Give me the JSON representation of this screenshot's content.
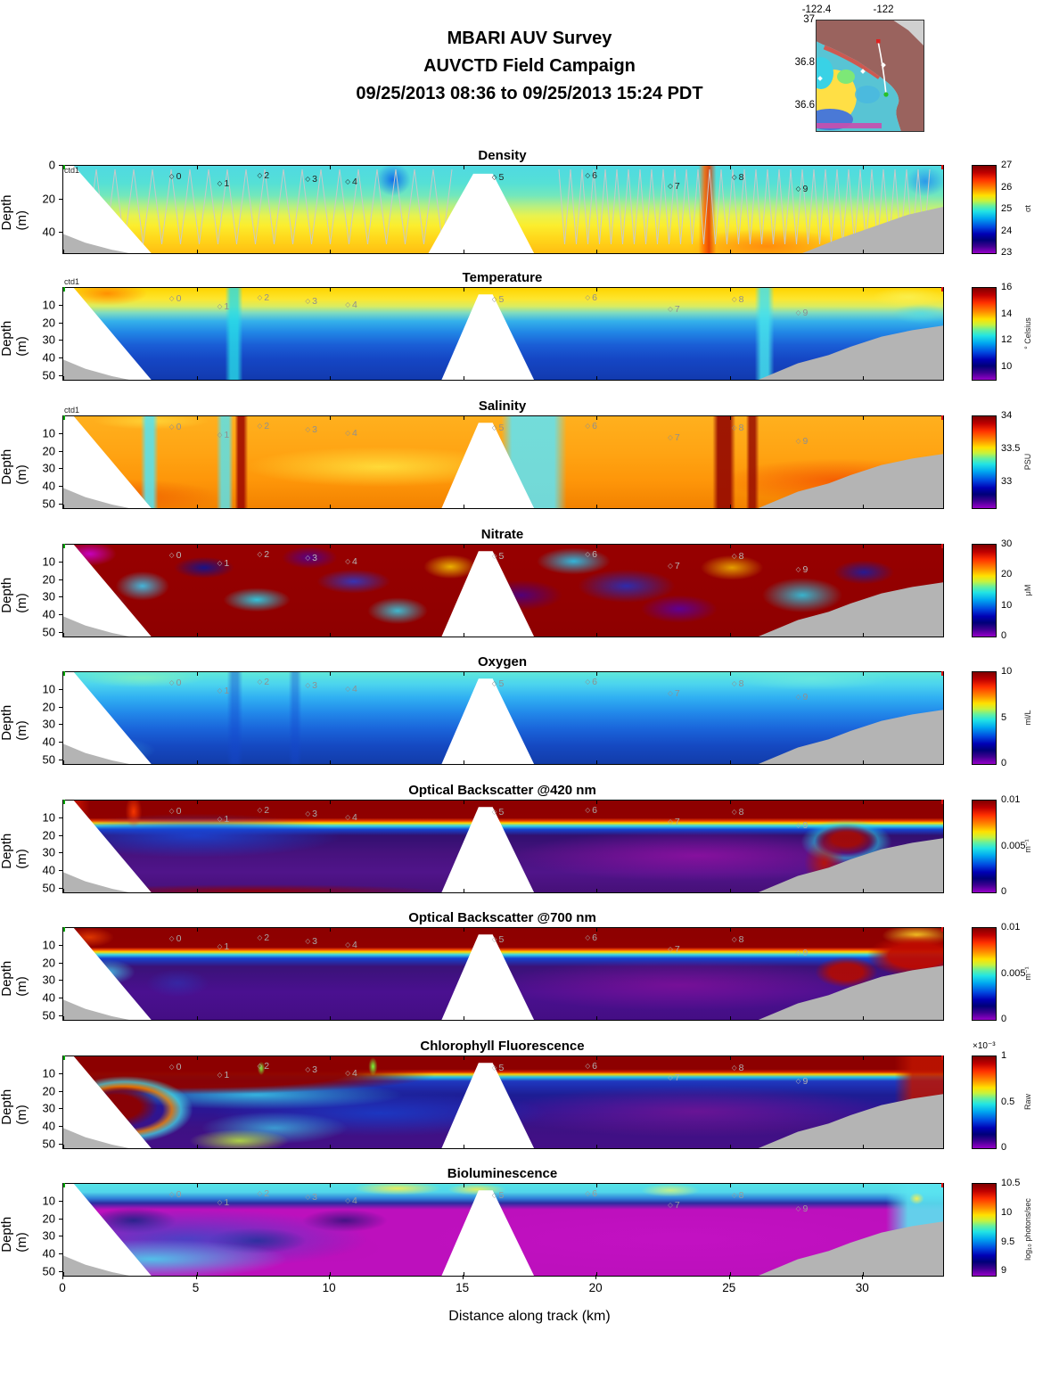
{
  "header": {
    "line1": "MBARI AUV Survey",
    "line2": "AUVCTD Field Campaign",
    "line3": "09/25/2013 08:36  to 09/25/2013 15:24 PDT"
  },
  "map_inset": {
    "lon_ticks": [
      "-122.4",
      "-122"
    ],
    "lat_ticks": [
      "37",
      "36.8",
      "36.6"
    ],
    "track_start_color": "#e02020",
    "track_end_color": "#27c227"
  },
  "axes": {
    "x_label": "Distance along track (km)",
    "x_ticks": [
      0,
      5,
      10,
      15,
      20,
      25,
      30
    ],
    "x_range_km": [
      0,
      33
    ],
    "depth_label": "Depth (m)",
    "depth_range_m": [
      0,
      52
    ]
  },
  "waypoints": {
    "labels": [
      "0",
      "1",
      "2",
      "3",
      "4",
      "5",
      "6",
      "7",
      "8",
      "9"
    ],
    "km": [
      4.2,
      6.0,
      7.5,
      9.3,
      10.8,
      16.3,
      19.8,
      22.9,
      25.3,
      27.7
    ]
  },
  "panels": [
    {
      "id": "density",
      "title": "Density",
      "ctd_label": "ctd1",
      "y_ticks": [
        0,
        20,
        40
      ],
      "colorbar": {
        "ticks": [
          "27",
          "26",
          "25",
          "24",
          "23"
        ],
        "positions": [
          0,
          0.25,
          0.5,
          0.75,
          1
        ],
        "unit": "σt"
      }
    },
    {
      "id": "temperature",
      "title": "Temperature",
      "ctd_label": "ctd1",
      "y_ticks": [
        10,
        20,
        30,
        40,
        50
      ],
      "colorbar": {
        "ticks": [
          "16",
          "14",
          "12",
          "10"
        ],
        "positions": [
          0,
          0.29,
          0.57,
          0.86
        ],
        "unit": "° Celsius"
      }
    },
    {
      "id": "salinity",
      "title": "Salinity",
      "ctd_label": "ctd1",
      "y_ticks": [
        10,
        20,
        30,
        40,
        50
      ],
      "colorbar": {
        "ticks": [
          "34",
          "33.5",
          "33"
        ],
        "positions": [
          0,
          0.36,
          0.72
        ],
        "unit": "PSU"
      }
    },
    {
      "id": "nitrate",
      "title": "Nitrate",
      "y_ticks": [
        10,
        20,
        30,
        40,
        50
      ],
      "colorbar": {
        "ticks": [
          "30",
          "20",
          "10",
          "0"
        ],
        "positions": [
          0,
          0.33,
          0.67,
          1
        ],
        "unit": "μM"
      }
    },
    {
      "id": "oxygen",
      "title": "Oxygen",
      "y_ticks": [
        10,
        20,
        30,
        40,
        50
      ],
      "colorbar": {
        "ticks": [
          "10",
          "5",
          "0"
        ],
        "positions": [
          0,
          0.5,
          1
        ],
        "unit": "ml/L"
      }
    },
    {
      "id": "obs420",
      "title": "Optical Backscatter @420 nm",
      "y_ticks": [
        10,
        20,
        30,
        40,
        50
      ],
      "colorbar": {
        "ticks": [
          "0.01",
          "0.005",
          "0"
        ],
        "positions": [
          0,
          0.5,
          1
        ],
        "unit": "m⁻¹"
      }
    },
    {
      "id": "obs700",
      "title": "Optical Backscatter @700 nm",
      "y_ticks": [
        10,
        20,
        30,
        40,
        50
      ],
      "colorbar": {
        "ticks": [
          "0.01",
          "0.005",
          "0"
        ],
        "positions": [
          0,
          0.5,
          1
        ],
        "unit": "m⁻¹"
      }
    },
    {
      "id": "chlorophyll",
      "title": "Chlorophyll Fluorescence",
      "y_ticks": [
        10,
        20,
        30,
        40,
        50
      ],
      "colorbar": {
        "ticks": [
          "1",
          "0.5",
          "0"
        ],
        "positions": [
          0,
          0.5,
          1
        ],
        "unit": "Raw",
        "multiplier": "×10⁻³"
      }
    },
    {
      "id": "bioluminescence",
      "title": "Bioluminescence",
      "y_ticks": [
        10,
        20,
        30,
        40,
        50
      ],
      "colorbar": {
        "ticks": [
          "10.5",
          "10",
          "9.5",
          "9"
        ],
        "positions": [
          0,
          0.32,
          0.64,
          0.95
        ],
        "unit": "log₁₀ photons/sec"
      }
    }
  ],
  "chart_data": [
    {
      "type": "heatmap",
      "title": "Density",
      "x_label": "Distance along track (km)",
      "x_range": [
        0,
        33
      ],
      "y_label": "Depth (m)",
      "y_range": [
        0,
        52
      ],
      "y_inverted": true,
      "colormap": "jet-with-purple-low",
      "colorbar_unit": "σt",
      "colorbar_ticks": [
        23,
        24,
        25,
        26,
        27
      ],
      "field_summary": "Cyan ~24.8-25.0 surface mixed layer over yellow-orange ~25.5-26.2 deep layer; gray AUV yo-yo sawtooth track overlaid; blue fresher patch near 12 km surface; orange-red streak near 26.5 km; surfacing data gap ~15.5-17.5 km; gray seafloor shoals beyond 27 km"
    },
    {
      "type": "heatmap",
      "title": "Temperature",
      "x_range": [
        0,
        33
      ],
      "y_range": [
        0,
        52
      ],
      "y_inverted": true,
      "colorbar_unit": "° Celsius",
      "colorbar_ticks": [
        10,
        12,
        14,
        16
      ],
      "field_summary": "Warm 14-16 °C yellow-orange surface band above sharp thermocline near 15-20 m; 10-11 °C dark blue below; cool cyan upwelling streaks near 6.5 km and 26.5 km"
    },
    {
      "type": "heatmap",
      "title": "Salinity",
      "x_range": [
        0,
        33
      ],
      "y_range": [
        0,
        52
      ],
      "y_inverted": true,
      "colorbar_unit": "PSU",
      "colorbar_ticks": [
        33,
        33.5,
        34
      ],
      "field_summary": "Mostly 33.6-33.8 orange; fresher cyan ~33.2 vertical streaks near 3.5, 6 and 17-19 km; salty >34 dark-red columns near 6.5 and 25-26 km"
    },
    {
      "type": "heatmap",
      "title": "Nitrate",
      "x_range": [
        0,
        33
      ],
      "y_range": [
        0,
        52
      ],
      "y_inverted": true,
      "colorbar_unit": "μM",
      "colorbar_ticks": [
        0,
        10,
        20,
        30
      ],
      "field_summary": "Highly patchy field alternating >30 μM dark-red blobs with low 0-10 μM purple/blue and mid 10-20 μM cyan patches; low magenta patch at surface 0-2 km; light-blue low-nitrate region lower-left"
    },
    {
      "type": "heatmap",
      "title": "Oxygen",
      "x_range": [
        0,
        33
      ],
      "y_range": [
        0,
        52
      ],
      "y_inverted": true,
      "colorbar_unit": "ml/L",
      "colorbar_ticks": [
        0,
        5,
        10
      ],
      "field_summary": "Oxygenated cyan ~6-7 ml/L surface water grading smoothly to blue ~3-4 ml/L at depth; slightly greener values near the surface at both ends of track"
    },
    {
      "type": "heatmap",
      "title": "Optical Backscatter @420 nm",
      "x_range": [
        0,
        33
      ],
      "y_range": [
        0,
        52
      ],
      "y_inverted": true,
      "colorbar_unit": "m⁻¹",
      "colorbar_ticks": [
        0,
        0.005,
        0.01
      ],
      "field_summary": "Saturated dark-red ≥0.01 m⁻¹ surface band to ~15-25 m with sharp red-yellow-cyan-blue transition into low purple interior; blue patch 2-10 km at 25-45 m; high backscatter along the shoaling seafloor near 28-30 km"
    },
    {
      "type": "heatmap",
      "title": "Optical Backscatter @700 nm",
      "x_range": [
        0,
        33
      ],
      "y_range": [
        0,
        52
      ],
      "y_inverted": true,
      "colorbar_unit": "m⁻¹",
      "colorbar_ticks": [
        0,
        0.005,
        0.01
      ],
      "field_summary": "Same structure as 420 nm: dark-red surface layer over purple interior; stronger red signal at far-right shallow shelf and near-bottom slope; cyan patch near 1-2 km at 20-30 m"
    },
    {
      "type": "heatmap",
      "title": "Chlorophyll Fluorescence",
      "x_range": [
        0,
        33
      ],
      "y_range": [
        0,
        52
      ],
      "y_inverted": true,
      "scale_multiplier": "×10⁻³",
      "colorbar_unit": "Raw",
      "colorbar_ticks": [
        0,
        0.5,
        1
      ],
      "field_summary": "Saturated dark-red ≥1e-3 surface chlorophyll layer to ~12-20 m; large dark-red subsurface patch 0-4 km at 25-50 m ringed by orange-cyan; blue/purple low values below; thin green spikes near 7.5 and 11.6 km"
    },
    {
      "type": "heatmap",
      "title": "Bioluminescence",
      "x_range": [
        0,
        33
      ],
      "y_range": [
        0,
        52
      ],
      "y_inverted": true,
      "colorbar_unit": "log₁₀ photons/sec",
      "colorbar_ticks": [
        9,
        9.5,
        10,
        10.5
      ],
      "field_summary": "Bright cyan ~9.7-10 surface band with yellow patches near 12-16 km; low magenta ~9 interior dominating right half; dark-blue mottled patches 0-14 km; cyan-green high patch near 0-3 km at 40-50 m"
    }
  ]
}
